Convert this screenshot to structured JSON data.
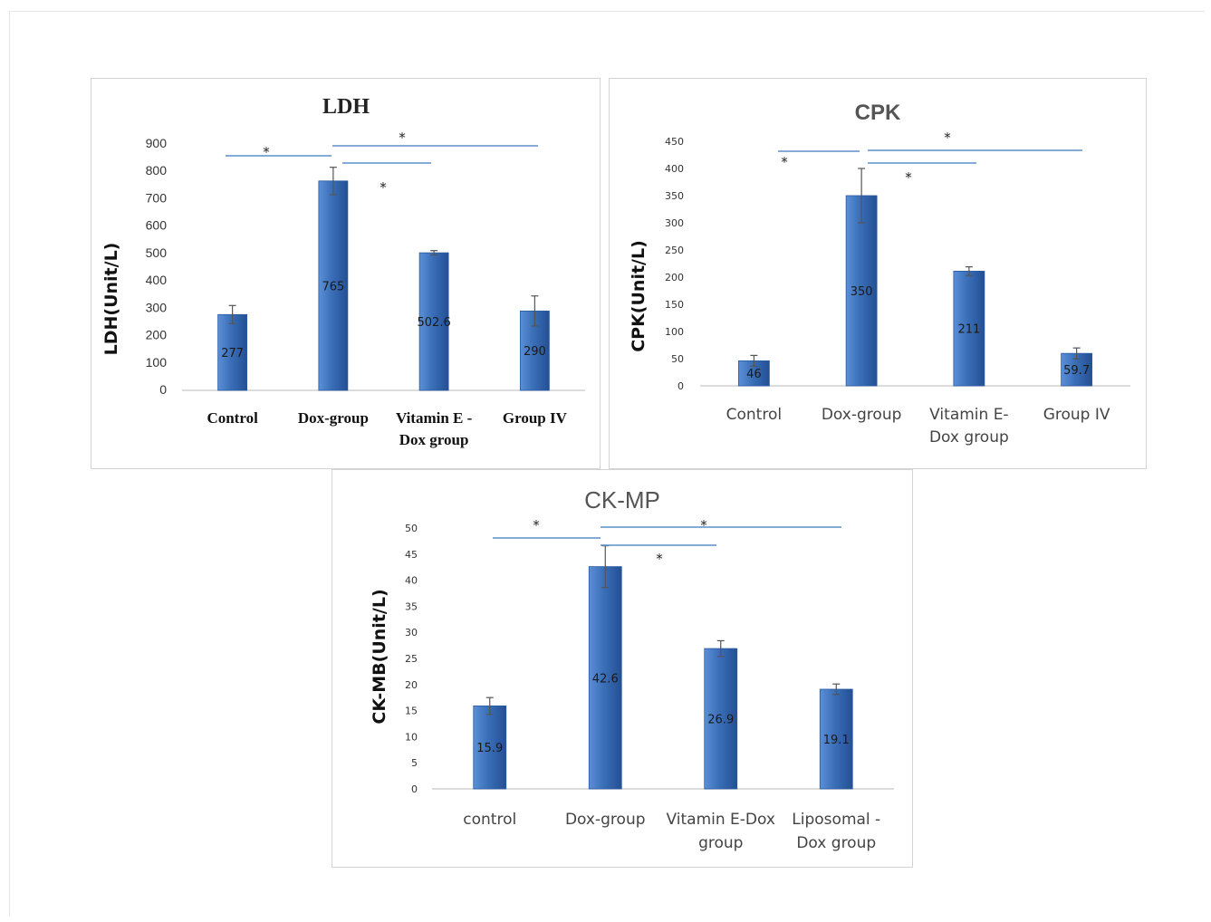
{
  "charts": [
    {
      "id": "ldh",
      "type": "bar",
      "title": "LDH",
      "ylabel": "LDH(Unit/L)",
      "xlabel": "",
      "categories": [
        "Control",
        "Dox-group",
        "Vitamin E -\nDox group",
        "Group IV"
      ],
      "values": [
        277,
        765,
        502.6,
        290
      ],
      "data_labels": [
        "277",
        "765",
        "502.6",
        "290"
      ],
      "errors": [
        33,
        50,
        8,
        55
      ],
      "ylim": [
        0,
        900
      ],
      "yticks": [
        "0",
        "100",
        "200",
        "300",
        "400",
        "500",
        "600",
        "700",
        "800",
        "900"
      ],
      "significance_marker": "*",
      "grid": false,
      "bar_color": "#3a6fb8"
    },
    {
      "id": "cpk",
      "type": "bar",
      "title": "CPK",
      "ylabel": "CPK(Unit/L)",
      "xlabel": "",
      "categories": [
        "Control",
        "Dox-group",
        "Vitamin E-\nDox group",
        "Group IV"
      ],
      "values": [
        46,
        350,
        211,
        59.7
      ],
      "data_labels": [
        "46",
        "350",
        "211",
        "59.7"
      ],
      "errors": [
        10,
        50,
        8,
        10
      ],
      "ylim": [
        0,
        450
      ],
      "yticks": [
        "0",
        "50",
        "100",
        "150",
        "200",
        "250",
        "300",
        "350",
        "400",
        "450"
      ],
      "significance_marker": "*",
      "grid": false,
      "bar_color": "#3a6fb8"
    },
    {
      "id": "ckmb",
      "type": "bar",
      "title": "CK-MP",
      "ylabel": "CK-MB(Unit/L)",
      "xlabel": "",
      "categories": [
        "control",
        "Dox-group",
        "Vitamin E-Dox\ngroup",
        "Liposomal -\nDox group"
      ],
      "values": [
        15.9,
        42.6,
        26.9,
        19.1
      ],
      "data_labels": [
        "15.9",
        "42.6",
        "26.9",
        "19.1"
      ],
      "errors": [
        1.6,
        4,
        1.5,
        1
      ],
      "ylim": [
        0,
        50
      ],
      "yticks": [
        "0",
        "5",
        "10",
        "15",
        "20",
        "25",
        "30",
        "35",
        "40",
        "45",
        "50"
      ],
      "significance_marker": "*",
      "grid": false,
      "bar_color": "#3a6fb8"
    }
  ],
  "chart_data": [
    {
      "type": "bar",
      "title": "LDH",
      "ylabel": "LDH(Unit/L)",
      "categories": [
        "Control",
        "Dox-group",
        "Vitamin E - Dox group",
        "Group IV"
      ],
      "values": [
        277,
        765,
        502.6,
        290
      ],
      "ylim": [
        0,
        900
      ]
    },
    {
      "type": "bar",
      "title": "CPK",
      "ylabel": "CPK(Unit/L)",
      "categories": [
        "Control",
        "Dox-group",
        "Vitamin E- Dox group",
        "Group IV"
      ],
      "values": [
        46,
        350,
        211,
        59.7
      ],
      "ylim": [
        0,
        450
      ]
    },
    {
      "type": "bar",
      "title": "CK-MP",
      "ylabel": "CK-MB(Unit/L)",
      "categories": [
        "control",
        "Dox-group",
        "Vitamin E-Dox group",
        "Liposomal - Dox group"
      ],
      "values": [
        15.9,
        42.6,
        26.9,
        19.1
      ],
      "ylim": [
        0,
        50
      ]
    }
  ]
}
